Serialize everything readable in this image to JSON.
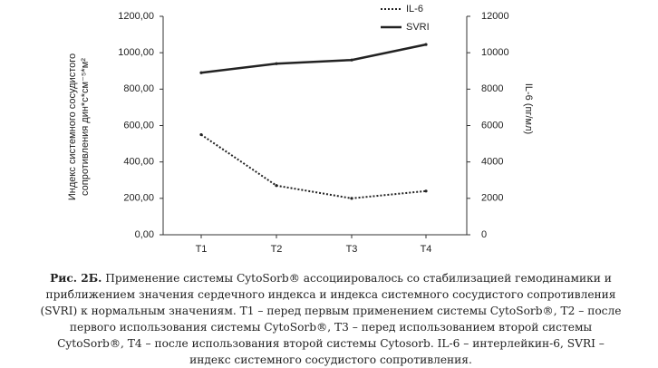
{
  "chart_data": {
    "type": "line",
    "ylabel": [
      "Индекс системного сосудистого",
      "сопротивления дин*с*см⁻⁵*м²"
    ],
    "y2label": "IL-6 (пг/мл)",
    "categories": [
      "T1",
      "T2",
      "T3",
      "T4"
    ],
    "series": [
      {
        "name": "IL-6",
        "color": "#222222",
        "style": "dotted",
        "axis": "y2",
        "values": [
          5500,
          2700,
          2000,
          2400
        ]
      },
      {
        "name": "SVRI",
        "color": "#222222",
        "style": "solid",
        "values": [
          890,
          940,
          960,
          1045
        ]
      }
    ],
    "ylim": [
      0,
      1200
    ],
    "yticks": [
      {
        "value": 0,
        "label": "0,00"
      },
      {
        "value": 200,
        "label": "200,00"
      },
      {
        "value": 400,
        "label": "400,00"
      },
      {
        "value": 600,
        "label": "600,00"
      },
      {
        "value": 800,
        "label": "800,00"
      },
      {
        "value": 1000,
        "label": "1000,00"
      },
      {
        "value": 1200,
        "label": "1200,00"
      }
    ],
    "y2lim": [
      0,
      12000
    ],
    "y2ticks": [
      0,
      2000,
      4000,
      6000,
      8000,
      10000,
      12000
    ],
    "legend": "top-right",
    "caption": {
      "label": "Рис. 2Б.",
      "text": "Применение системы CytoSorb® ассоциировалось со стабилизацией гемодинамики и приближением значения сердечного индекса и индекса системного сосудистого сопротивления (SVRI) к нормальным значениям. T1 – перед первым применением системы CytoSorb®, T2 – после первого использования системы CytoSorb®, T3 – перед использованием второй системы CytoSorb®, T4 – после использования второй системы Cytosorb. IL-6 – интерлейкин-6, SVRI – индекс системного сосудистого сопротивления."
    }
  }
}
